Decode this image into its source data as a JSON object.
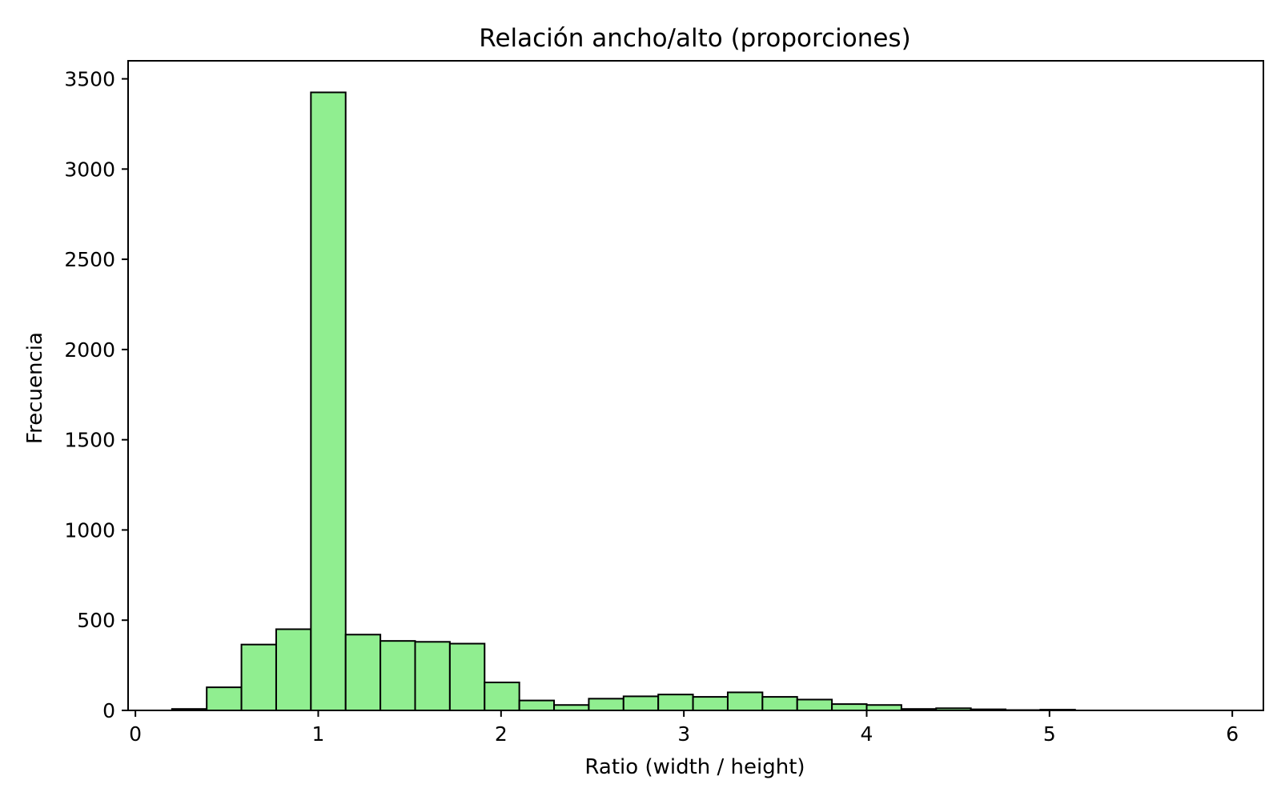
{
  "chart_data": {
    "type": "bar",
    "title": "Relación ancho/alto (proporciones)",
    "xlabel": "Ratio (width / height)",
    "ylabel": "Frecuencia",
    "xlim": [
      -0.04,
      6.17
    ],
    "ylim": [
      0,
      3600
    ],
    "x_ticks": [
      0,
      1,
      2,
      3,
      4,
      5,
      6
    ],
    "y_ticks": [
      0,
      500,
      1000,
      1500,
      2000,
      2500,
      3000,
      3500
    ],
    "bins": [
      {
        "x0": 0.2,
        "x1": 0.39,
        "value": 8
      },
      {
        "x0": 0.39,
        "x1": 0.58,
        "value": 128
      },
      {
        "x0": 0.58,
        "x1": 0.77,
        "value": 365
      },
      {
        "x0": 0.77,
        "x1": 0.96,
        "value": 450
      },
      {
        "x0": 0.96,
        "x1": 1.15,
        "value": 3425
      },
      {
        "x0": 1.15,
        "x1": 1.34,
        "value": 420
      },
      {
        "x0": 1.34,
        "x1": 1.53,
        "value": 385
      },
      {
        "x0": 1.53,
        "x1": 1.72,
        "value": 380
      },
      {
        "x0": 1.72,
        "x1": 1.91,
        "value": 370
      },
      {
        "x0": 1.91,
        "x1": 2.1,
        "value": 155
      },
      {
        "x0": 2.1,
        "x1": 2.29,
        "value": 55
      },
      {
        "x0": 2.29,
        "x1": 2.48,
        "value": 30
      },
      {
        "x0": 2.48,
        "x1": 2.67,
        "value": 65
      },
      {
        "x0": 2.67,
        "x1": 2.86,
        "value": 78
      },
      {
        "x0": 2.86,
        "x1": 3.05,
        "value": 88
      },
      {
        "x0": 3.05,
        "x1": 3.24,
        "value": 75
      },
      {
        "x0": 3.24,
        "x1": 3.43,
        "value": 100
      },
      {
        "x0": 3.43,
        "x1": 3.62,
        "value": 75
      },
      {
        "x0": 3.62,
        "x1": 3.81,
        "value": 60
      },
      {
        "x0": 3.81,
        "x1": 4.0,
        "value": 35
      },
      {
        "x0": 4.0,
        "x1": 4.19,
        "value": 30
      },
      {
        "x0": 4.19,
        "x1": 4.38,
        "value": 8
      },
      {
        "x0": 4.38,
        "x1": 4.57,
        "value": 12
      },
      {
        "x0": 4.57,
        "x1": 4.76,
        "value": 6
      },
      {
        "x0": 4.76,
        "x1": 4.95,
        "value": 2
      },
      {
        "x0": 4.95,
        "x1": 5.14,
        "value": 4
      }
    ],
    "bar_color": "#90ee90",
    "edge_color": "#000000",
    "grid": false,
    "legend": "none"
  }
}
